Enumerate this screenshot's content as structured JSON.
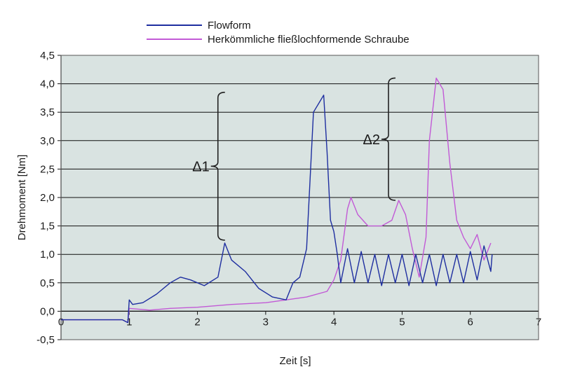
{
  "chart_data": {
    "type": "line",
    "xlabel": "Zeit [s]",
    "ylabel": "Drehmoment [Nm]",
    "xlim": [
      0,
      7
    ],
    "ylim": [
      -0.5,
      4.5
    ],
    "x_ticks": [
      "0",
      "1",
      "2",
      "3",
      "4",
      "5",
      "6",
      "7"
    ],
    "y_ticks": [
      "-0,5",
      "0,0",
      "0,5",
      "1,0",
      "1,5",
      "2,0",
      "2,5",
      "3,0",
      "3,5",
      "4,0",
      "4,5"
    ],
    "grid": true,
    "legend_position": "top",
    "plot_background": "#d9e3e1",
    "series": [
      {
        "name": "Flowform",
        "color": "#1e2ea0",
        "points": [
          [
            0.0,
            -0.15
          ],
          [
            0.5,
            -0.15
          ],
          [
            0.9,
            -0.15
          ],
          [
            0.98,
            -0.2
          ],
          [
            1.0,
            0.2
          ],
          [
            1.05,
            0.12
          ],
          [
            1.2,
            0.15
          ],
          [
            1.4,
            0.3
          ],
          [
            1.6,
            0.5
          ],
          [
            1.75,
            0.6
          ],
          [
            1.9,
            0.55
          ],
          [
            2.1,
            0.45
          ],
          [
            2.3,
            0.6
          ],
          [
            2.4,
            1.2
          ],
          [
            2.5,
            0.9
          ],
          [
            2.7,
            0.7
          ],
          [
            2.9,
            0.4
          ],
          [
            3.1,
            0.25
          ],
          [
            3.3,
            0.2
          ],
          [
            3.4,
            0.5
          ],
          [
            3.5,
            0.6
          ],
          [
            3.6,
            1.1
          ],
          [
            3.7,
            3.5
          ],
          [
            3.8,
            3.7
          ],
          [
            3.85,
            3.8
          ],
          [
            3.9,
            2.8
          ],
          [
            3.95,
            1.6
          ],
          [
            4.0,
            1.4
          ],
          [
            4.05,
            1.0
          ],
          [
            4.1,
            0.5
          ],
          [
            4.2,
            1.1
          ],
          [
            4.3,
            0.5
          ],
          [
            4.4,
            1.05
          ],
          [
            4.5,
            0.5
          ],
          [
            4.6,
            1.0
          ],
          [
            4.7,
            0.45
          ],
          [
            4.8,
            1.0
          ],
          [
            4.9,
            0.5
          ],
          [
            5.0,
            1.0
          ],
          [
            5.1,
            0.45
          ],
          [
            5.2,
            1.0
          ],
          [
            5.3,
            0.5
          ],
          [
            5.4,
            1.0
          ],
          [
            5.5,
            0.45
          ],
          [
            5.6,
            1.0
          ],
          [
            5.7,
            0.5
          ],
          [
            5.8,
            1.0
          ],
          [
            5.9,
            0.5
          ],
          [
            6.0,
            1.05
          ],
          [
            6.1,
            0.55
          ],
          [
            6.2,
            1.15
          ],
          [
            6.3,
            0.7
          ],
          [
            6.32,
            1.0
          ]
        ]
      },
      {
        "name": "Herkömmliche fließlochformende Schraube",
        "color": "#c25ad6",
        "points": [
          [
            0.0,
            -0.15
          ],
          [
            0.5,
            -0.15
          ],
          [
            0.9,
            -0.15
          ],
          [
            0.98,
            -0.2
          ],
          [
            1.0,
            0.05
          ],
          [
            1.3,
            0.02
          ],
          [
            1.6,
            0.05
          ],
          [
            2.0,
            0.07
          ],
          [
            2.5,
            0.12
          ],
          [
            3.0,
            0.15
          ],
          [
            3.3,
            0.2
          ],
          [
            3.6,
            0.25
          ],
          [
            3.9,
            0.35
          ],
          [
            4.0,
            0.55
          ],
          [
            4.1,
            0.9
          ],
          [
            4.2,
            1.8
          ],
          [
            4.25,
            2.0
          ],
          [
            4.35,
            1.7
          ],
          [
            4.5,
            1.5
          ],
          [
            4.7,
            1.5
          ],
          [
            4.85,
            1.6
          ],
          [
            4.95,
            1.95
          ],
          [
            5.05,
            1.7
          ],
          [
            5.15,
            1.1
          ],
          [
            5.25,
            0.6
          ],
          [
            5.35,
            1.3
          ],
          [
            5.4,
            3.0
          ],
          [
            5.5,
            4.1
          ],
          [
            5.6,
            3.9
          ],
          [
            5.7,
            2.6
          ],
          [
            5.8,
            1.6
          ],
          [
            5.9,
            1.3
          ],
          [
            6.0,
            1.1
          ],
          [
            6.1,
            1.35
          ],
          [
            6.2,
            0.9
          ],
          [
            6.3,
            1.2
          ]
        ]
      }
    ],
    "annotations": [
      {
        "label": "Δ1",
        "y_from": 1.25,
        "y_to": 3.85,
        "x_bracket": 2.3
      },
      {
        "label": "Δ2",
        "y_from": 1.95,
        "y_to": 4.1,
        "x_bracket": 4.8
      }
    ]
  }
}
